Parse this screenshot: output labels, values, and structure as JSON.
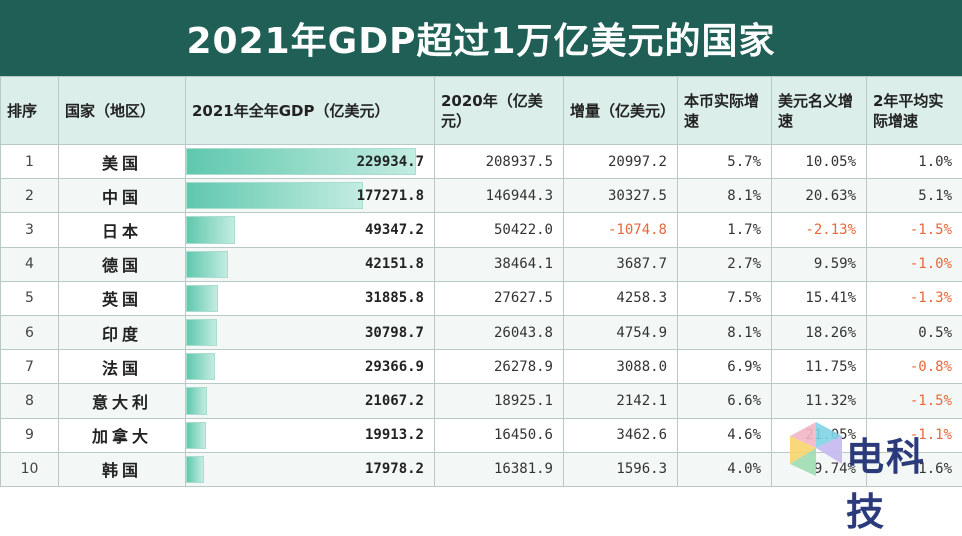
{
  "title": "2021年GDP超过1万亿美元的国家",
  "headers": {
    "rank": "排序",
    "country": "国家（地区）",
    "gdp2021": "2021年全年GDP（亿美元）",
    "gdp2020": "2020年（亿美元）",
    "increase": "增量（亿美元）",
    "real_growth": "本币实际增速",
    "nominal_growth": "美元名义增速",
    "avg2y": "2年平均实际增速"
  },
  "rows": [
    {
      "rank": "1",
      "country": "美国",
      "gdp2021": "229934.7",
      "gdp2020": "208937.5",
      "increase": "20997.2",
      "real": "5.7%",
      "nominal": "10.05%",
      "avg": "1.0%"
    },
    {
      "rank": "2",
      "country": "中国",
      "gdp2021": "177271.8",
      "gdp2020": "146944.3",
      "increase": "30327.5",
      "real": "8.1%",
      "nominal": "20.63%",
      "avg": "5.1%"
    },
    {
      "rank": "3",
      "country": "日本",
      "gdp2021": "49347.2",
      "gdp2020": "50422.0",
      "increase": "-1074.8",
      "real": "1.7%",
      "nominal": "-2.13%",
      "avg": "-1.5%"
    },
    {
      "rank": "4",
      "country": "德国",
      "gdp2021": "42151.8",
      "gdp2020": "38464.1",
      "increase": "3687.7",
      "real": "2.7%",
      "nominal": "9.59%",
      "avg": "-1.0%"
    },
    {
      "rank": "5",
      "country": "英国",
      "gdp2021": "31885.8",
      "gdp2020": "27627.5",
      "increase": "4258.3",
      "real": "7.5%",
      "nominal": "15.41%",
      "avg": "-1.3%"
    },
    {
      "rank": "6",
      "country": "印度",
      "gdp2021": "30798.7",
      "gdp2020": "26043.8",
      "increase": "4754.9",
      "real": "8.1%",
      "nominal": "18.26%",
      "avg": "0.5%"
    },
    {
      "rank": "7",
      "country": "法国",
      "gdp2021": "29366.9",
      "gdp2020": "26278.9",
      "increase": "3088.0",
      "real": "6.9%",
      "nominal": "11.75%",
      "avg": "-0.8%"
    },
    {
      "rank": "8",
      "country": "意大利",
      "gdp2021": "21067.2",
      "gdp2020": "18925.1",
      "increase": "2142.1",
      "real": "6.6%",
      "nominal": "11.32%",
      "avg": "-1.5%"
    },
    {
      "rank": "9",
      "country": "加拿大",
      "gdp2021": "19913.2",
      "gdp2020": "16450.6",
      "increase": "3462.6",
      "real": "4.6%",
      "nominal": "21.05%",
      "avg": "-1.1%"
    },
    {
      "rank": "10",
      "country": "韩国",
      "gdp2021": "17978.2",
      "gdp2020": "16381.9",
      "increase": "1596.3",
      "real": "4.0%",
      "nominal": "9.74%",
      "avg": "1.6%"
    }
  ],
  "bar_color": "#5fc8ad",
  "negative_color": "#e8673d",
  "logo": {
    "text": "电科技",
    "icon": "brand-logo-icon"
  }
}
